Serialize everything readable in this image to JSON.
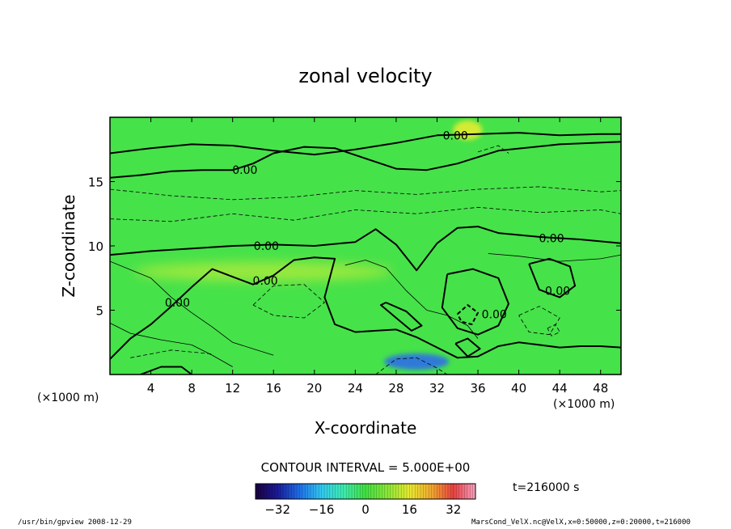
{
  "chart_data": {
    "type": "heatmap",
    "title": "zonal velocity",
    "xlabel": "X-coordinate",
    "ylabel": "Z-coordinate",
    "x_units": "(×1000 m)",
    "y_units": "(×1000 m)",
    "x_ticks": [
      4,
      8,
      12,
      16,
      20,
      24,
      28,
      32,
      36,
      40,
      44,
      48
    ],
    "y_ticks": [
      5,
      10,
      15
    ],
    "xlim": [
      0,
      50
    ],
    "ylim": [
      0,
      20
    ],
    "contour_interval_label": "CONTOUR INTERVAL = 5.000E+00",
    "contour_labels": [
      {
        "text": "0.00",
        "x": 13.2,
        "z": 15.9
      },
      {
        "text": "0.00",
        "x": 33.8,
        "z": 18.6
      },
      {
        "text": "0.00",
        "x": 15.3,
        "z": 10.0
      },
      {
        "text": "0.00",
        "x": 43.2,
        "z": 10.6
      },
      {
        "text": "0.00",
        "x": 15.2,
        "z": 7.3
      },
      {
        "text": "0.00",
        "x": 6.6,
        "z": 5.6
      },
      {
        "text": "0.00",
        "x": 43.8,
        "z": 6.5
      },
      {
        "text": "0.00",
        "x": 37.6,
        "z": 4.7
      }
    ],
    "color_scale": {
      "min": -40,
      "max": 40,
      "ticks": [
        -32,
        -16,
        0,
        16,
        32
      ],
      "colors": [
        "#1a0040",
        "#1a1a9a",
        "#1e6fe6",
        "#32c8f0",
        "#3cecb0",
        "#40e040",
        "#8ae838",
        "#e8e830",
        "#f0a830",
        "#e84040",
        "#f8a0c0"
      ]
    },
    "colors": {
      "background_field": "#46e24a",
      "weak_negative": "#38dc80",
      "negative": "#35cfc4",
      "positive": "#a8ea3c",
      "strong_positive": "#e4ec30",
      "strong_negative": "#2f6fe8"
    }
  },
  "time_label": "t=216000 s",
  "footer": {
    "left": "/usr/bin/gpview   2008-12-29",
    "right": "MarsCond_VelX.nc@VelX,x=0:50000,z=0:20000,t=216000"
  }
}
